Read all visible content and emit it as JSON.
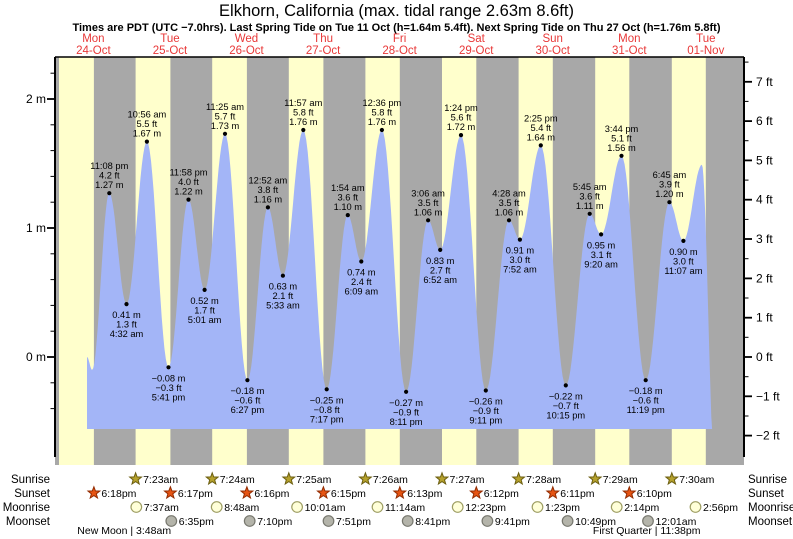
{
  "header": {
    "title": "Elkhorn, California (max. tidal range 2.63m 8.6ft)",
    "subtitle": "Times are PDT (UTC −7.0hrs). Last Spring Tide on Tue 11 Oct (h=1.64m 5.4ft). Next Spring Tide on Thu 27 Oct (h=1.76m 5.8ft)"
  },
  "chart_data": {
    "type": "area",
    "title": "Tide height curve for Elkhorn, California, Mon 24-Oct to Tue 01-Nov",
    "ylabel_left": "m",
    "ylabel_right": "ft",
    "y_axis_left": {
      "range": [
        -0.4,
        2.2
      ],
      "minor_step": 0.2,
      "major_labels": [
        {
          "v": 0,
          "text": "0 m"
        },
        {
          "v": 1,
          "text": "1 m"
        },
        {
          "v": 2,
          "text": "2 m"
        }
      ]
    },
    "y_axis_right": {
      "range": [
        -2,
        7.5
      ],
      "minor_step": 0.5,
      "major_labels": [
        {
          "v": -2,
          "text": "−2 ft"
        },
        {
          "v": -1,
          "text": "−1 ft"
        },
        {
          "v": 0,
          "text": "0 ft"
        },
        {
          "v": 1,
          "text": "1 ft"
        },
        {
          "v": 2,
          "text": "2 ft"
        },
        {
          "v": 3,
          "text": "3 ft"
        },
        {
          "v": 4,
          "text": "4 ft"
        },
        {
          "v": 5,
          "text": "5 ft"
        },
        {
          "v": 6,
          "text": "6 ft"
        },
        {
          "v": 7,
          "text": "7 ft"
        }
      ]
    },
    "days": [
      {
        "weekday": "Mon",
        "date": "24-Oct",
        "t": 0.757
      },
      {
        "weekday": "Tue",
        "date": "25-Oct",
        "t": 1.757
      },
      {
        "weekday": "Wed",
        "date": "26-Oct",
        "t": 2.757
      },
      {
        "weekday": "Thu",
        "date": "27-Oct",
        "t": 3.757
      },
      {
        "weekday": "Fri",
        "date": "28-Oct",
        "t": 4.757
      },
      {
        "weekday": "Sat",
        "date": "29-Oct",
        "t": 5.757
      },
      {
        "weekday": "Sun",
        "date": "30-Oct",
        "t": 6.757
      },
      {
        "weekday": "Mon",
        "date": "31-Oct",
        "t": 7.757
      },
      {
        "weekday": "Tue",
        "date": "01-Nov",
        "t": 8.757
      }
    ],
    "curve_start": {
      "t": 0.6728,
      "h": 0.0
    },
    "curve_end": {
      "t": 8.87,
      "h": -0.8
    },
    "tide_events": [
      {
        "type": "low",
        "t": 0.74,
        "h": -0.1,
        "labeled": false
      },
      {
        "type": "high",
        "t": 0.96389,
        "h": 1.27,
        "time": "11:08 pm",
        "ft": "4.2 ft",
        "m": "1.27 m",
        "labeled": true
      },
      {
        "type": "low",
        "t": 1.18889,
        "h": 0.41,
        "time": "4:32 am",
        "ft": "1.3 ft",
        "m": "0.41 m",
        "labeled": true
      },
      {
        "type": "high",
        "t": 1.45556,
        "h": 1.67,
        "time": "10:56 am",
        "ft": "5.5 ft",
        "m": "1.67 m",
        "labeled": true
      },
      {
        "type": "low",
        "t": 1.73681,
        "h": -0.08,
        "time": "5:41 pm",
        "ft": "−0.3 ft",
        "m": "−0.08 m",
        "labeled": true
      },
      {
        "type": "high",
        "t": 1.99861,
        "h": 1.22,
        "time": "11:58 pm",
        "ft": "4.0 ft",
        "m": "1.22 m",
        "labeled": true
      },
      {
        "type": "low",
        "t": 2.20903,
        "h": 0.52,
        "time": "5:01 am",
        "ft": "1.7 ft",
        "m": "0.52 m",
        "labeled": true
      },
      {
        "type": "high",
        "t": 2.47569,
        "h": 1.73,
        "time": "11:25 am",
        "ft": "5.7 ft",
        "m": "1.73 m",
        "labeled": true
      },
      {
        "type": "low",
        "t": 2.76875,
        "h": -0.18,
        "time": "6:27 pm",
        "ft": "−0.6 ft",
        "m": "−0.18 m",
        "labeled": true
      },
      {
        "type": "high",
        "t": 3.03611,
        "h": 1.16,
        "time": "12:52 am",
        "ft": "3.8 ft",
        "m": "1.16 m",
        "labeled": true
      },
      {
        "type": "low",
        "t": 3.23125,
        "h": 0.63,
        "time": "5:33 am",
        "ft": "2.1 ft",
        "m": "0.63 m",
        "labeled": true
      },
      {
        "type": "high",
        "t": 3.49792,
        "h": 1.76,
        "time": "11:57 am",
        "ft": "5.8 ft",
        "m": "1.76 m",
        "labeled": true
      },
      {
        "type": "low",
        "t": 3.80347,
        "h": -0.25,
        "time": "7:17 pm",
        "ft": "−0.8 ft",
        "m": "−0.25 m",
        "labeled": true
      },
      {
        "type": "high",
        "t": 4.07917,
        "h": 1.1,
        "time": "1:54 am",
        "ft": "3.6 ft",
        "m": "1.10 m",
        "labeled": true
      },
      {
        "type": "low",
        "t": 4.25625,
        "h": 0.74,
        "time": "6:09 am",
        "ft": "2.4 ft",
        "m": "0.74 m",
        "labeled": true
      },
      {
        "type": "high",
        "t": 4.525,
        "h": 1.76,
        "time": "12:36 pm",
        "ft": "5.8 ft",
        "m": "1.76 m",
        "labeled": true
      },
      {
        "type": "low",
        "t": 4.84097,
        "h": -0.27,
        "time": "8:11 pm",
        "ft": "−0.9 ft",
        "m": "−0.27 m",
        "labeled": true
      },
      {
        "type": "high",
        "t": 5.12917,
        "h": 1.06,
        "time": "3:06 am",
        "ft": "3.5 ft",
        "m": "1.06 m",
        "labeled": true
      },
      {
        "type": "low",
        "t": 5.28611,
        "h": 0.83,
        "time": "6:52 am",
        "ft": "2.7 ft",
        "m": "0.83 m",
        "labeled": true
      },
      {
        "type": "high",
        "t": 5.55833,
        "h": 1.72,
        "time": "1:24 pm",
        "ft": "5.6 ft",
        "m": "1.72 m",
        "labeled": true
      },
      {
        "type": "low",
        "t": 5.88264,
        "h": -0.26,
        "time": "9:11 pm",
        "ft": "−0.9 ft",
        "m": "−0.26 m",
        "labeled": true
      },
      {
        "type": "high",
        "t": 6.18611,
        "h": 1.06,
        "time": "4:28 am",
        "ft": "3.5 ft",
        "m": "1.06 m",
        "labeled": true
      },
      {
        "type": "low",
        "t": 6.32778,
        "h": 0.91,
        "time": "7:52 am",
        "ft": "3.0 ft",
        "m": "0.91 m",
        "labeled": true
      },
      {
        "type": "high",
        "t": 6.60069,
        "h": 1.64,
        "time": "2:25 pm",
        "ft": "5.4 ft",
        "m": "1.64 m",
        "labeled": true
      },
      {
        "type": "low",
        "t": 6.92708,
        "h": -0.22,
        "time": "10:15 pm",
        "ft": "−0.7 ft",
        "m": "−0.22 m",
        "labeled": true
      },
      {
        "type": "high",
        "t": 7.23958,
        "h": 1.11,
        "time": "5:45 am",
        "ft": "3.6 ft",
        "m": "1.11 m",
        "labeled": true
      },
      {
        "type": "low",
        "t": 7.38889,
        "h": 0.95,
        "time": "9:20 am",
        "ft": "3.1 ft",
        "m": "0.95 m",
        "labeled": true
      },
      {
        "type": "high",
        "t": 7.65556,
        "h": 1.56,
        "time": "3:44 pm",
        "ft": "5.1 ft",
        "m": "1.56 m",
        "labeled": true
      },
      {
        "type": "low",
        "t": 7.97153,
        "h": -0.18,
        "time": "11:19 pm",
        "ft": "−0.6 ft",
        "m": "−0.18 m",
        "labeled": true
      },
      {
        "type": "high",
        "t": 8.28125,
        "h": 1.2,
        "time": "6:45 am",
        "ft": "3.9 ft",
        "m": "1.20 m",
        "labeled": true
      },
      {
        "type": "low",
        "t": 8.46319,
        "h": 0.9,
        "time": "11:07 am",
        "ft": "3.0 ft",
        "m": "0.90 m",
        "labeled": true
      },
      {
        "type": "high",
        "t": 8.705,
        "h": 1.49,
        "labeled": false
      }
    ],
    "colors": {
      "day_band": "#ffffcc",
      "night_band": "#a8a8a8",
      "tide_fill": "#a3b5f7",
      "day_label_red": "#e83838",
      "axis": "#000000",
      "sunrise_star": "#b5a12c",
      "sunrise_star_edge": "#6b5e10",
      "sunset_star": "#e65413",
      "sunset_star_edge": "#922b00",
      "moonrise_disc": "#ffffd8",
      "moonrise_disc_edge": "#9d9d62",
      "moonset_disc": "#b4b4aa",
      "moonset_disc_edge": "#77776e"
    }
  },
  "almanac": {
    "rows": [
      {
        "label": "Sunrise",
        "marker": "sunrise-star",
        "entries": [
          {
            "time": "7:23am",
            "t": 1.30764
          },
          {
            "time": "7:24am",
            "t": 2.30833
          },
          {
            "time": "7:25am",
            "t": 3.30903
          },
          {
            "time": "7:26am",
            "t": 4.30972
          },
          {
            "time": "7:27am",
            "t": 5.31042
          },
          {
            "time": "7:28am",
            "t": 6.31111
          },
          {
            "time": "7:29am",
            "t": 7.31181
          },
          {
            "time": "7:30am",
            "t": 8.3125
          }
        ]
      },
      {
        "label": "Sunset",
        "marker": "sunset-star",
        "entries": [
          {
            "time": "6:18pm",
            "t": 0.7625
          },
          {
            "time": "6:17pm",
            "t": 1.76181
          },
          {
            "time": "6:16pm",
            "t": 2.76111
          },
          {
            "time": "6:15pm",
            "t": 3.76042
          },
          {
            "time": "6:13pm",
            "t": 4.75903
          },
          {
            "time": "6:12pm",
            "t": 5.75833
          },
          {
            "time": "6:11pm",
            "t": 6.75764
          },
          {
            "time": "6:10pm",
            "t": 7.75694
          }
        ]
      },
      {
        "label": "Moonrise",
        "marker": "moonrise-disc",
        "entries": [
          {
            "time": "7:37am",
            "t": 1.31736
          },
          {
            "time": "8:48am",
            "t": 2.36667
          },
          {
            "time": "10:01am",
            "t": 3.41736
          },
          {
            "time": "11:14am",
            "t": 4.46806
          },
          {
            "time": "12:23pm",
            "t": 5.51597
          },
          {
            "time": "1:23pm",
            "t": 6.55764
          },
          {
            "time": "2:14pm",
            "t": 7.59306
          },
          {
            "time": "2:56pm",
            "t": 8.62222
          }
        ]
      },
      {
        "label": "Moonset",
        "marker": "moonset-disc",
        "entries": [
          {
            "time": "6:35pm",
            "t": 1.77431
          },
          {
            "time": "7:10pm",
            "t": 2.79861
          },
          {
            "time": "7:51pm",
            "t": 3.82708
          },
          {
            "time": "8:41pm",
            "t": 4.86181
          },
          {
            "time": "9:41pm",
            "t": 5.90347
          },
          {
            "time": "10:49pm",
            "t": 6.95069
          },
          {
            "time": "12:01am",
            "t": 8.00069
          }
        ]
      }
    ],
    "moon_phases": [
      {
        "name": "New Moon",
        "time": "3:48am",
        "t": 1.15833
      },
      {
        "name": "First Quarter",
        "time": "11:38pm",
        "t": 7.98472
      }
    ]
  }
}
